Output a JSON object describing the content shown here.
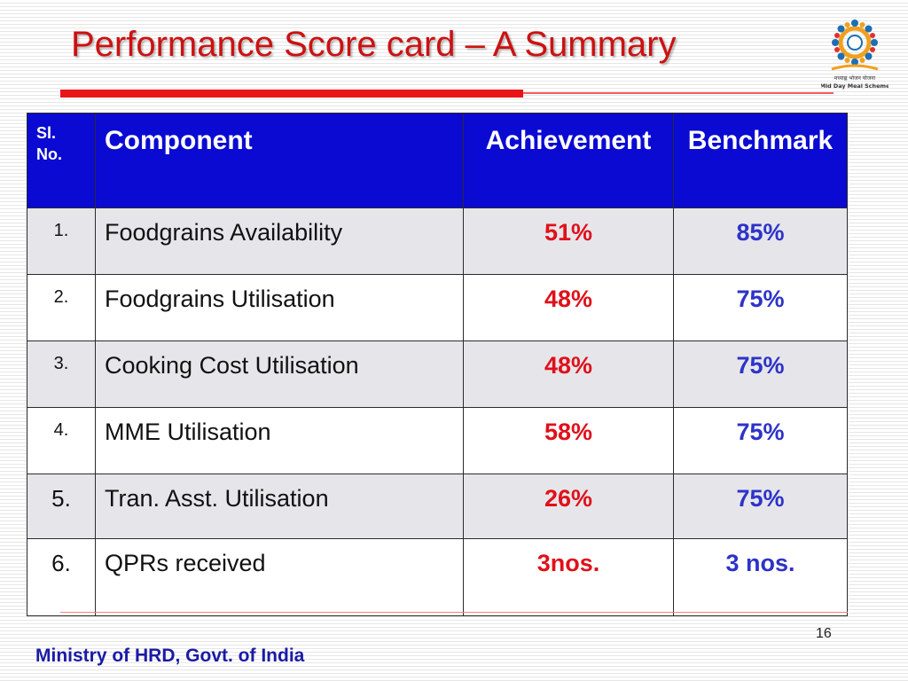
{
  "slide": {
    "title": "Performance Score card – A Summary",
    "page_number": "16",
    "footer": "Ministry of HRD, Govt. of India",
    "logo": {
      "icon": "mid-day-meal-scheme-logo",
      "text_hindi": "मध्याह्न भोजन योजना",
      "text_english": "Mid Day Meal Scheme"
    }
  },
  "table": {
    "headers": {
      "sl_line1": "Sl.",
      "sl_line2": "No.",
      "component": "Component",
      "achievement": "Achievement",
      "benchmark": "Benchmark"
    },
    "rows": [
      {
        "sl": "1.",
        "component": "Foodgrains Availability",
        "achievement": "51%",
        "benchmark": "85%"
      },
      {
        "sl": "2.",
        "component": "Foodgrains Utilisation",
        "achievement": "48%",
        "benchmark": "75%"
      },
      {
        "sl": "3.",
        "component": "Cooking Cost Utilisation",
        "achievement": "48%",
        "benchmark": "75%"
      },
      {
        "sl": "4.",
        "component": "MME Utilisation",
        "achievement": "58%",
        "benchmark": "75%"
      },
      {
        "sl": "5.",
        "component": "Tran. Asst. Utilisation",
        "achievement": "26%",
        "benchmark": "75%"
      },
      {
        "sl": "6.",
        "component": "QPRs received",
        "achievement": "3nos.",
        "benchmark": "3 nos."
      }
    ]
  },
  "colors": {
    "title": "#cc1111",
    "header_bg": "#0a0ad2",
    "achievement": "#e0101a",
    "benchmark": "#2d33c8",
    "footer": "#1a1aa6"
  }
}
